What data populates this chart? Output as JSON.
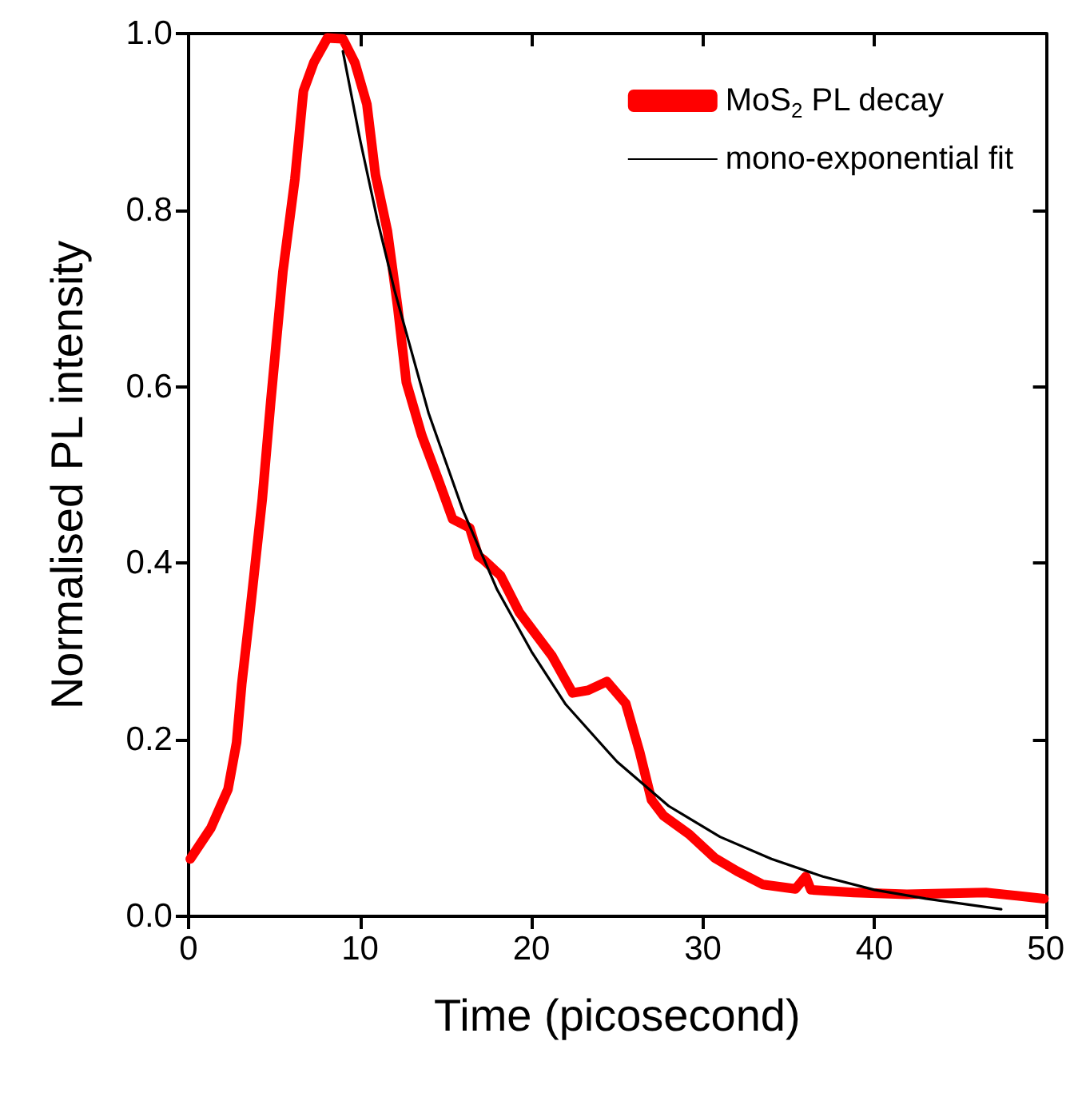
{
  "chart_data": {
    "type": "line",
    "xlabel": "Time (picosecond)",
    "ylabel": "Normalised PL intensity",
    "xlim": [
      0,
      50
    ],
    "xticks": [
      0,
      10,
      20,
      30,
      40,
      50
    ],
    "ylim": [
      0,
      1
    ],
    "yticks": [
      {
        "value": 0,
        "label": "0.0"
      },
      {
        "value": 0.2,
        "label": "0.2"
      },
      {
        "value": 0.4,
        "label": "0.4"
      },
      {
        "value": 0.6,
        "label": "0.6"
      },
      {
        "value": 0.8,
        "label": "0.8"
      },
      {
        "value": 1,
        "label": "1.0"
      }
    ],
    "grid": false,
    "legend": "top right",
    "marker": "none",
    "line_style": "solid",
    "series": [
      {
        "name": "MoS$_{2}$ PL decay",
        "color": "#ff0000",
        "x": [
          0.1,
          1.3,
          2.3,
          2.8,
          3.1,
          3.6,
          4.3,
          4.8,
          5.5,
          6.2,
          6.7,
          7.3,
          8.1,
          9.0,
          9.7,
          10.4,
          10.9,
          11.6,
          12.2,
          12.7,
          13.6,
          14.6,
          15.4,
          16.4,
          16.9,
          17.2,
          18.2,
          19.3,
          21.2,
          22.4,
          23.3,
          24.4,
          25.5,
          26.3,
          27.0,
          27.7,
          29.2,
          30.7,
          32.0,
          33.5,
          35.4,
          36.0,
          36.3,
          38.8,
          41.9,
          46.5,
          49.9
        ],
        "values": [
          0.065,
          0.1,
          0.144,
          0.197,
          0.263,
          0.348,
          0.473,
          0.585,
          0.73,
          0.835,
          0.935,
          0.967,
          0.995,
          0.994,
          0.967,
          0.92,
          0.84,
          0.776,
          0.69,
          0.605,
          0.545,
          0.493,
          0.45,
          0.44,
          0.408,
          0.404,
          0.386,
          0.344,
          0.295,
          0.253,
          0.256,
          0.266,
          0.241,
          0.187,
          0.132,
          0.114,
          0.093,
          0.066,
          0.051,
          0.036,
          0.031,
          0.045,
          0.03,
          0.027,
          0.025,
          0.027,
          0.02
        ]
      },
      {
        "name": "mono-exponential fit",
        "color": "#000000",
        "x": [
          9,
          10,
          11,
          12,
          13,
          14,
          16,
          18,
          20,
          22,
          25,
          28,
          31,
          34,
          37,
          40,
          43,
          47.4
        ],
        "values": [
          0.98,
          0.88,
          0.79,
          0.71,
          0.64,
          0.57,
          0.46,
          0.37,
          0.3,
          0.24,
          0.175,
          0.125,
          0.09,
          0.065,
          0.045,
          0.03,
          0.02,
          0.008
        ]
      }
    ]
  }
}
